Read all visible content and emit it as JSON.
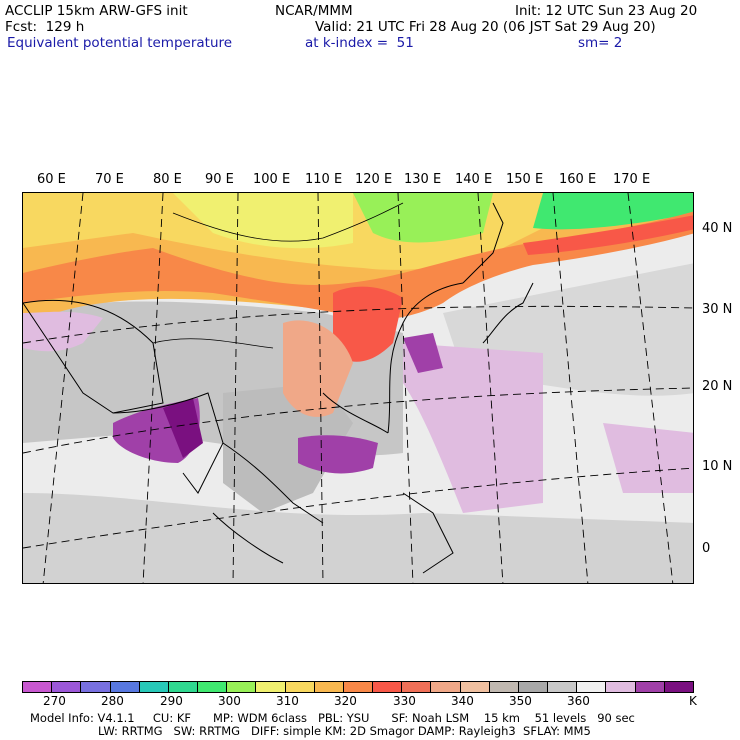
{
  "header": {
    "model": "ACCLIP 15km ARW-GFS init",
    "org": "NCAR/MMM",
    "init": "Init: 12 UTC Sun 23 Aug 20",
    "fcst": "Fcst:  129 h",
    "valid": "Valid: 21 UTC Fri 28 Aug 20 (06 JST Sat 29 Aug 20)",
    "field": "Equivalent potential temperature",
    "level": "at k-index =  51",
    "smooth": "sm= 2"
  },
  "map": {
    "lon_labels": [
      "60 E",
      "70 E",
      "80 E",
      "90 E",
      "100 E",
      "110 E",
      "120 E",
      "130 E",
      "140 E",
      "150 E",
      "160 E",
      "170 E"
    ],
    "lat_labels": [
      "40 N",
      "30 N",
      "20 N",
      "10 N",
      "0"
    ]
  },
  "colorbar": {
    "colors": [
      "#c858d0",
      "#9c58d8",
      "#7870e0",
      "#5878e0",
      "#28c8b8",
      "#30d890",
      "#40e870",
      "#98f058",
      "#f0f070",
      "#f8d860",
      "#f8b850",
      "#f88848",
      "#f85848",
      "#f07058",
      "#f0a888",
      "#f0c0a0",
      "#c0b8b0",
      "#a8a8a8",
      "#c8c8c8",
      "#f0f0f0",
      "#e0bce0",
      "#a040a8",
      "#7a1080"
    ],
    "labels": [
      "270",
      "280",
      "290",
      "300",
      "310",
      "320",
      "330",
      "340",
      "350",
      "360",
      "K"
    ]
  },
  "footer": {
    "line1": "Model Info: V4.1.1     CU: KF      MP: WDM 6class   PBL: YSU      SF: Noah LSM    15 km    51 levels   90 sec",
    "line2": "LW: RRTMG   SW: RRTMG   DIFF: simple KM: 2D Smagor DAMP: Rayleigh3  SFLAY: MM5"
  }
}
